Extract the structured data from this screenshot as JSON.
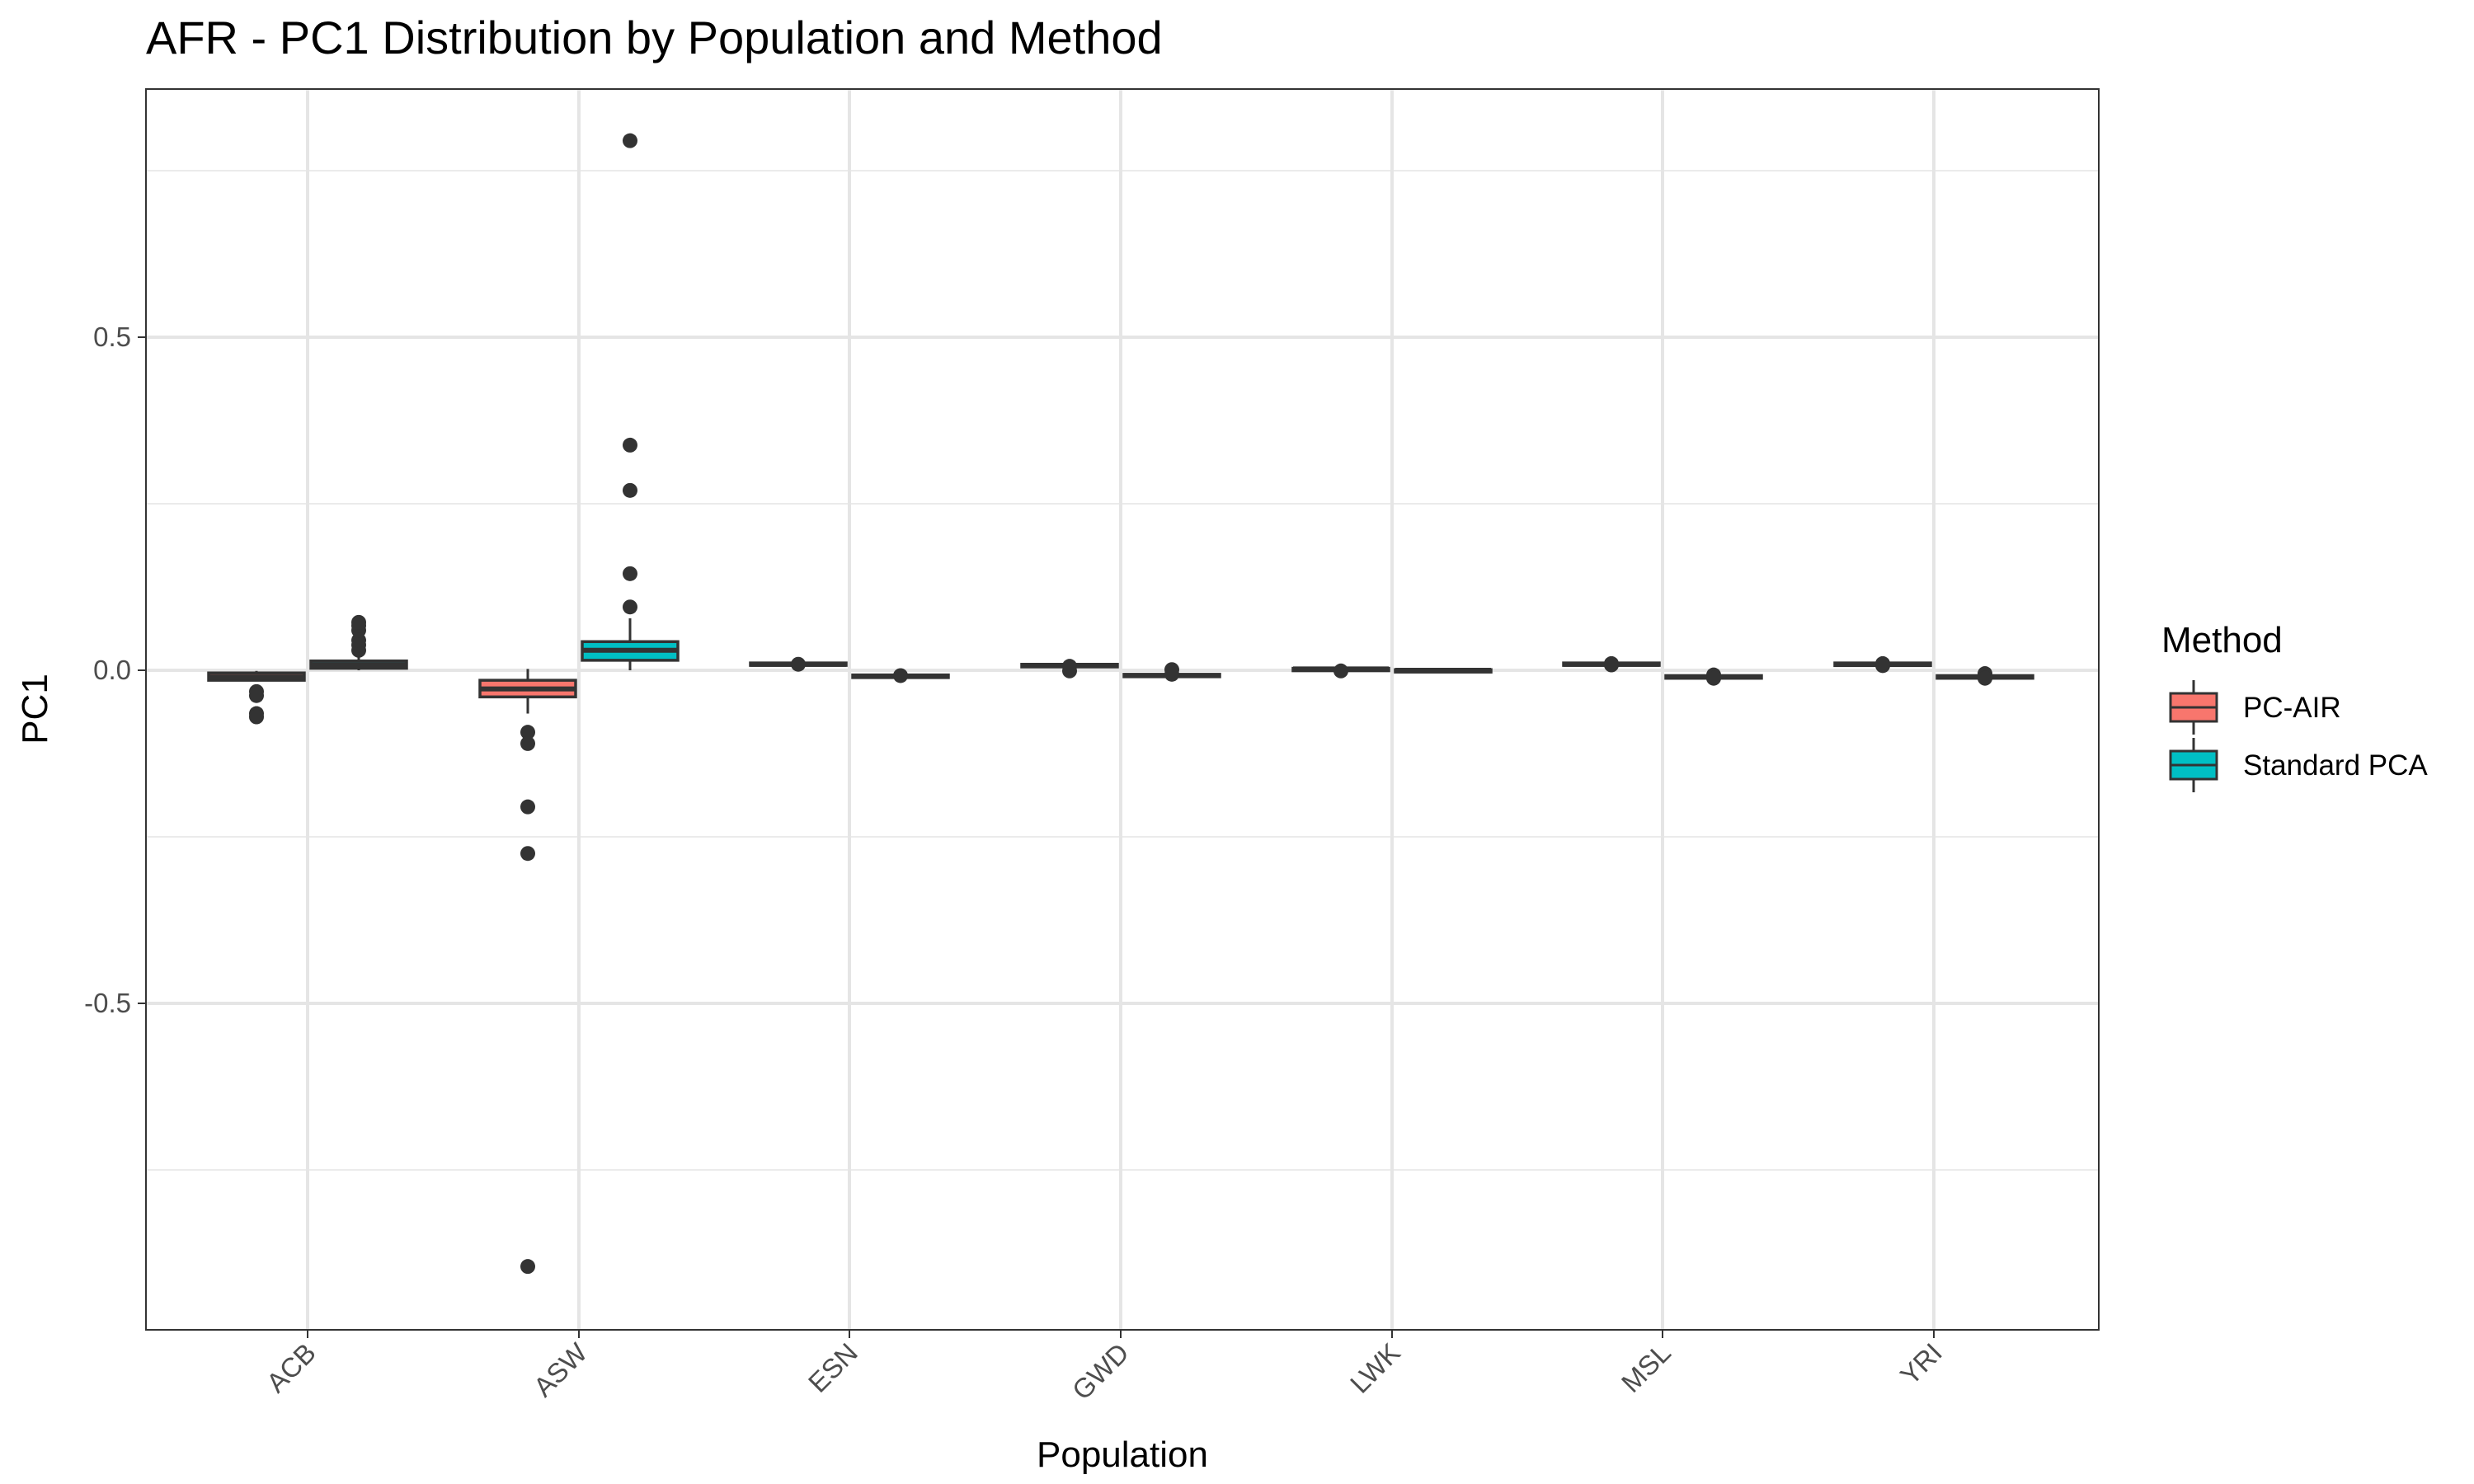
{
  "chart_data": {
    "type": "boxplot",
    "title": "AFR - PC1 Distribution by Population and Method",
    "xlabel": "Population",
    "ylabel": "PC1",
    "ylim": [
      -0.98,
      0.88
    ],
    "yticks": [
      -0.5,
      0.0,
      0.5
    ],
    "yticklabels": [
      "-0.5",
      "0.0",
      "0.5"
    ],
    "y_minor_gridlines": [
      -0.75,
      -0.25,
      0.25,
      0.75
    ],
    "grid": true,
    "legend": {
      "title": "Method",
      "position": "right"
    },
    "categories": [
      "ACB",
      "ASW",
      "ESN",
      "GWD",
      "LWK",
      "MSL",
      "YRI"
    ],
    "series": [
      {
        "name": "PC-AIR",
        "color": "#F8766D",
        "boxes": [
          {
            "category": "ACB",
            "whisker_low": -0.015,
            "q1": -0.015,
            "median": -0.01,
            "q3": -0.004,
            "whisker_high": -0.001,
            "outliers": [
              -0.032,
              -0.038,
              -0.065,
              -0.07
            ]
          },
          {
            "category": "ASW",
            "whisker_low": -0.065,
            "q1": -0.04,
            "median": -0.028,
            "q3": -0.015,
            "whisker_high": 0.002,
            "outliers": [
              -0.093,
              -0.11,
              -0.205,
              -0.275,
              -0.895
            ]
          },
          {
            "category": "ESN",
            "whisker_low": 0.006,
            "q1": 0.008,
            "median": 0.009,
            "q3": 0.011,
            "whisker_high": 0.013,
            "outliers": [
              0.009
            ]
          },
          {
            "category": "GWD",
            "whisker_low": 0.004,
            "q1": 0.005,
            "median": 0.007,
            "q3": 0.009,
            "whisker_high": 0.011,
            "outliers": [
              -0.001,
              0.006
            ]
          },
          {
            "category": "LWK",
            "whisker_low": 0.0,
            "q1": 0.001,
            "median": 0.002,
            "q3": 0.003,
            "whisker_high": 0.004,
            "outliers": [
              -0.001
            ]
          },
          {
            "category": "MSL",
            "whisker_low": 0.007,
            "q1": 0.008,
            "median": 0.009,
            "q3": 0.011,
            "whisker_high": 0.012,
            "outliers": [
              0.008,
              0.01
            ]
          },
          {
            "category": "YRI",
            "whisker_low": 0.006,
            "q1": 0.007,
            "median": 0.009,
            "q3": 0.011,
            "whisker_high": 0.012,
            "outliers": [
              0.007,
              0.01
            ]
          }
        ]
      },
      {
        "name": "Standard PCA",
        "color": "#00BFC4",
        "boxes": [
          {
            "category": "ACB",
            "whisker_low": 0.0,
            "q1": 0.003,
            "median": 0.008,
            "q3": 0.014,
            "whisker_high": 0.02,
            "outliers": [
              0.03,
              0.038,
              0.045,
              0.06,
              0.067,
              0.072
            ]
          },
          {
            "category": "ASW",
            "whisker_low": 0.0,
            "q1": 0.015,
            "median": 0.03,
            "q3": 0.043,
            "whisker_high": 0.078,
            "outliers": [
              0.095,
              0.145,
              0.27,
              0.338,
              0.795
            ]
          },
          {
            "category": "ESN",
            "whisker_low": -0.013,
            "q1": -0.011,
            "median": -0.009,
            "q3": -0.007,
            "whisker_high": -0.005,
            "outliers": [
              -0.008
            ]
          },
          {
            "category": "GWD",
            "whisker_low": -0.011,
            "q1": -0.009,
            "median": -0.008,
            "q3": -0.006,
            "whisker_high": -0.004,
            "outliers": [
              -0.006,
              0.001
            ]
          },
          {
            "category": "LWK",
            "whisker_low": -0.002,
            "q1": -0.001,
            "median": 0.0,
            "q3": 0.001,
            "whisker_high": 0.002,
            "outliers": []
          },
          {
            "category": "MSL",
            "whisker_low": -0.014,
            "q1": -0.012,
            "median": -0.01,
            "q3": -0.008,
            "whisker_high": -0.006,
            "outliers": [
              -0.007,
              -0.012
            ]
          },
          {
            "category": "YRI",
            "whisker_low": -0.014,
            "q1": -0.012,
            "median": -0.01,
            "q3": -0.008,
            "whisker_high": -0.006,
            "outliers": [
              -0.005,
              -0.012
            ]
          }
        ]
      }
    ]
  }
}
